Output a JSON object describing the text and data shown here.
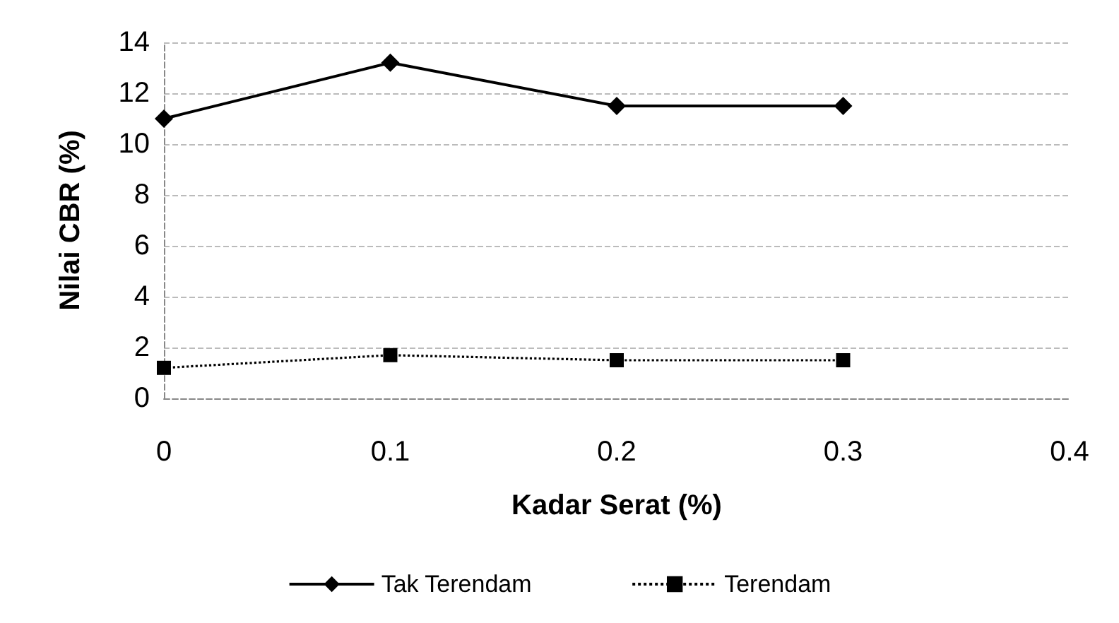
{
  "chart_data": {
    "type": "line",
    "xlabel": "Kadar Serat (%)",
    "ylabel": "Nilai CBR (%)",
    "x": [
      0,
      0.1,
      0.2,
      0.3
    ],
    "series": [
      {
        "name": "Tak Terendam",
        "color": "#000000",
        "values": [
          11.0,
          13.2,
          11.5,
          11.5
        ],
        "marker": "diamond",
        "line_style": "solid"
      },
      {
        "name": "Terendam",
        "color": "#000000",
        "values": [
          1.2,
          1.7,
          1.5,
          1.5
        ],
        "marker": "square",
        "line_style": "dotted"
      }
    ],
    "xlim": [
      0,
      0.4
    ],
    "xticks": [
      0,
      0.1,
      0.2,
      0.3,
      0.4
    ],
    "ylim": [
      0,
      14
    ],
    "yticks": [
      0,
      2,
      4,
      6,
      8,
      10,
      12,
      14
    ],
    "grid": "y",
    "legend": "bottom"
  }
}
